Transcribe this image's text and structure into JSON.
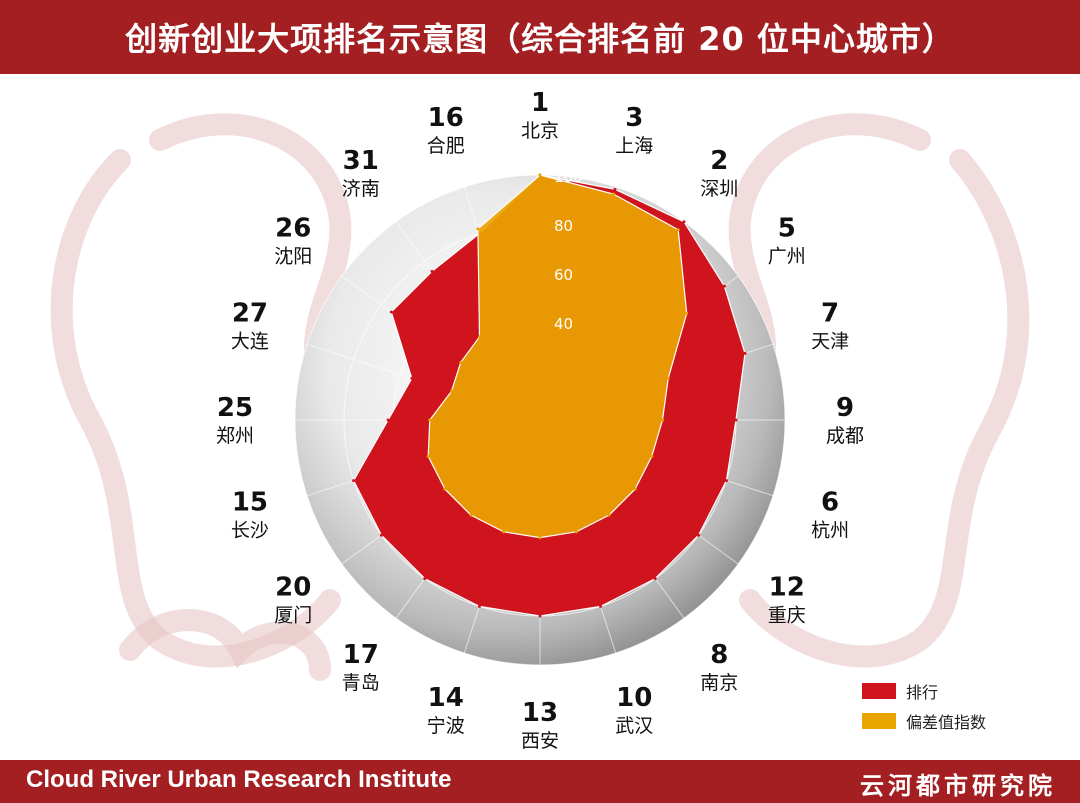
{
  "header": {
    "title": "创新创业大项排名示意图（综合排名前 20 位中心城市）"
  },
  "footer": {
    "left_text": "Cloud River Urban Research Institute",
    "right_text": "云河都市研究院"
  },
  "colors": {
    "brand_red": "#a31f22",
    "rank_series": "#d0141e",
    "index_series": "#e8a400"
  },
  "chart_data": {
    "type": "radar",
    "title": "创新创业大项排名示意图（综合排名前 20 位中心城市）",
    "radial_axis": {
      "ticks": [
        40,
        60,
        80,
        100
      ],
      "range": [
        0,
        100
      ]
    },
    "categories": [
      "北京",
      "上海",
      "深圳",
      "广州",
      "天津",
      "成都",
      "杭州",
      "重庆",
      "南京",
      "武汉",
      "西安",
      "宁波",
      "青岛",
      "厦门",
      "长沙",
      "郑州",
      "大连",
      "沈阳",
      "济南",
      "合肥"
    ],
    "ranks": [
      1,
      3,
      2,
      5,
      7,
      9,
      6,
      12,
      8,
      10,
      13,
      14,
      17,
      20,
      15,
      25,
      27,
      26,
      31,
      16
    ],
    "series": [
      {
        "name": "排行",
        "values": [
          100,
          99,
          100,
          93,
          88,
          80,
          80,
          80,
          80,
          80,
          80,
          80,
          80,
          80,
          80,
          62,
          55,
          75,
          75,
          80
        ]
      },
      {
        "name": "偏差值指数",
        "values": [
          100,
          97,
          96,
          74,
          55,
          50,
          48,
          48,
          48,
          48,
          48,
          48,
          48,
          48,
          48,
          45,
          38,
          40,
          42,
          82
        ]
      }
    ],
    "legend": {
      "position": "bottom-right",
      "entries": [
        "排行",
        "偏差值指数"
      ]
    },
    "grid": true
  }
}
